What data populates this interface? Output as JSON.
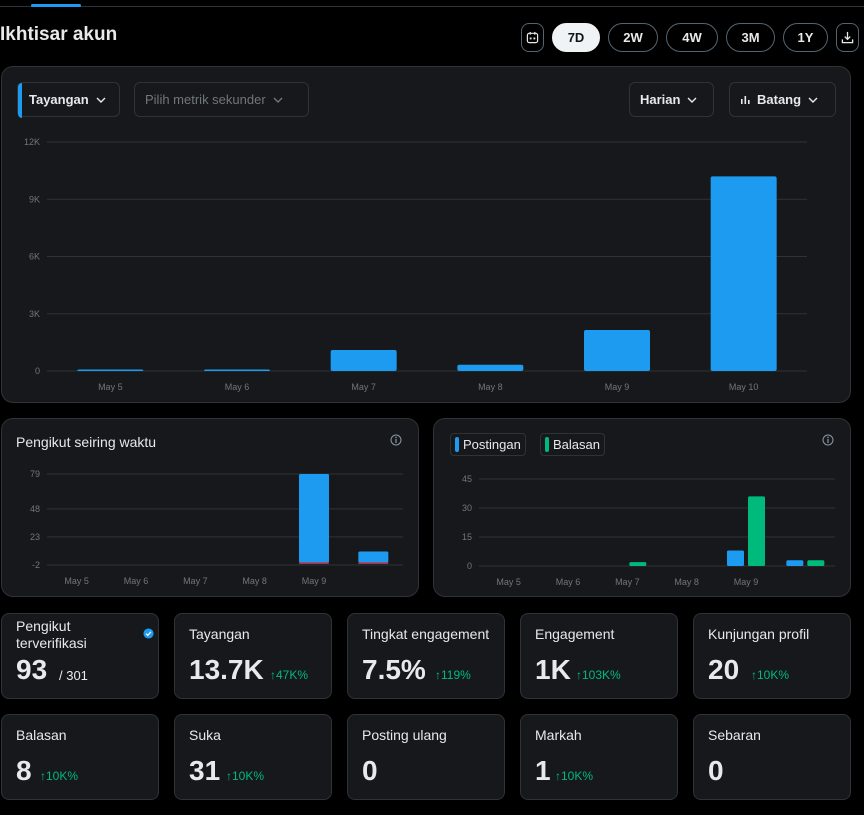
{
  "header": {
    "title": "Ikhtisar akun",
    "ranges": [
      "7D",
      "2W",
      "4W",
      "3M",
      "1Y"
    ],
    "active_range": "7D"
  },
  "controls": {
    "primary_metric": "Tayangan",
    "secondary_metric_placeholder": "Pilih metrik sekunder",
    "interval": "Harian",
    "chart_type": "Batang"
  },
  "info_icon": "info-icon",
  "colors": {
    "accent": "#1d9bf0",
    "green": "#00ba7c",
    "red": "#f4212e"
  },
  "followers_card": {
    "title": "Pengikut seiring waktu"
  },
  "posts_card": {
    "legend_posts": "Postingan",
    "legend_replies": "Balasan"
  },
  "stats": {
    "verified_followers": {
      "label": "Pengikut terverifikasi",
      "value": "93",
      "total": "/ 301"
    },
    "impressions": {
      "label": "Tayangan",
      "value": "13.7K",
      "change": "47K%"
    },
    "engagement_rate": {
      "label": "Tingkat engagement",
      "value": "7.5%",
      "change": "119%"
    },
    "engagements": {
      "label": "Engagement",
      "value": "1K",
      "change": "103K%"
    },
    "profile_visits": {
      "label": "Kunjungan profil",
      "value": "20",
      "change": "10K%"
    },
    "replies": {
      "label": "Balasan",
      "value": "8",
      "change": "10K%"
    },
    "likes": {
      "label": "Suka",
      "value": "31",
      "change": "10K%"
    },
    "reposts": {
      "label": "Posting ulang",
      "value": "0"
    },
    "bookmarks": {
      "label": "Markah",
      "value": "1",
      "change": "10K%"
    },
    "shares": {
      "label": "Sebaran",
      "value": "0"
    }
  },
  "chart_data": [
    {
      "type": "bar",
      "categories": [
        "May 5",
        "May 6",
        "May 7",
        "May 8",
        "May 9",
        "May 10"
      ],
      "series": [
        {
          "name": "Tayangan",
          "values": [
            20,
            20,
            1100,
            330,
            2150,
            10200
          ]
        }
      ],
      "yticks": [
        "12K",
        "9K",
        "6K",
        "3K",
        "0"
      ],
      "ylim": [
        0,
        12000
      ],
      "grid": true
    },
    {
      "type": "bar",
      "categories": [
        "May 5",
        "May 6",
        "May 7",
        "May 8",
        "May 9",
        ""
      ],
      "series": [
        {
          "name": "",
          "values": [
            0,
            0,
            0,
            0,
            79,
            10
          ],
          "negative": [
            0,
            0,
            0,
            0,
            -1,
            -1
          ]
        }
      ],
      "yticks": [
        "79",
        "48",
        "23",
        "-2"
      ],
      "ylim": [
        -2,
        79
      ],
      "grid": true
    },
    {
      "type": "bar",
      "categories": [
        "May 5",
        "May 6",
        "May 7",
        "May 8",
        "May 9",
        ""
      ],
      "series": [
        {
          "name": "Postingan",
          "values": [
            0,
            0,
            0,
            0,
            8,
            3
          ]
        },
        {
          "name": "Balasan",
          "values": [
            0,
            0,
            2,
            0,
            36,
            3
          ]
        }
      ],
      "yticks": [
        "45",
        "30",
        "15",
        "0"
      ],
      "ylim": [
        0,
        45
      ],
      "grid": true
    }
  ]
}
